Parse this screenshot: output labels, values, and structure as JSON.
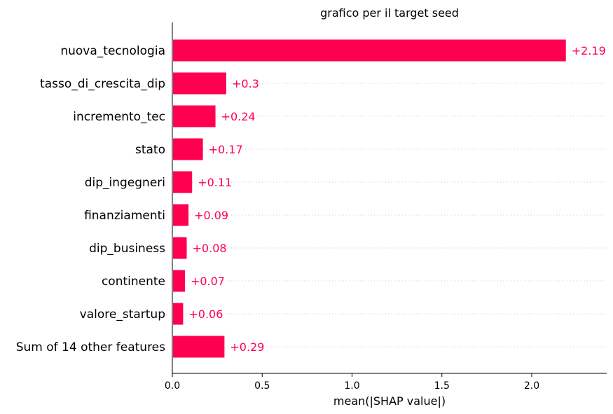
{
  "chart_data": {
    "type": "bar",
    "orientation": "horizontal",
    "title": "grafico per il target seed",
    "xlabel": "mean(|SHAP value|)",
    "ylabel": "",
    "xlim": [
      0,
      2.42
    ],
    "xticks": [
      0.0,
      0.5,
      1.0,
      1.5,
      2.0
    ],
    "xtick_labels": [
      "0.0",
      "0.5",
      "1.0",
      "1.5",
      "2.0"
    ],
    "categories": [
      "nuova_tecnologia",
      "tasso_di_crescita_dip",
      "incremento_tec",
      "stato",
      "dip_ingegneri",
      "finanziamenti",
      "dip_business",
      "continente",
      "valore_startup",
      "Sum of 14 other features"
    ],
    "values": [
      2.19,
      0.3,
      0.24,
      0.17,
      0.11,
      0.09,
      0.08,
      0.07,
      0.06,
      0.29
    ],
    "value_labels": [
      "+2.19",
      "+0.3",
      "+0.24",
      "+0.17",
      "+0.11",
      "+0.09",
      "+0.08",
      "+0.07",
      "+0.06",
      "+0.29"
    ],
    "grid": "dotted horizontal lines per row",
    "bar_color": "#ff0051",
    "label_color": "#ff0051"
  }
}
